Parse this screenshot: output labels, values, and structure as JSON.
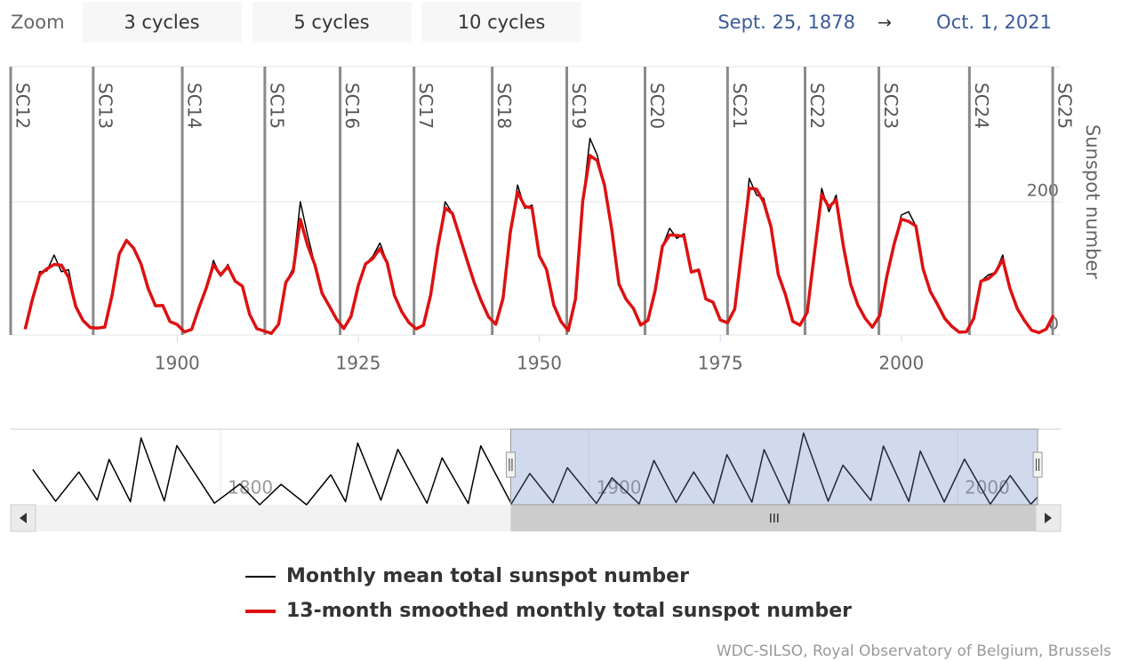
{
  "zoom_label": "Zoom",
  "zoom_buttons": [
    "3 cycles",
    "5 cycles",
    "10 cycles"
  ],
  "range": {
    "from": "Sept. 25, 1878",
    "arrow": "→",
    "to": "Oct. 1, 2021"
  },
  "credits": "WDC-SILSO, Royal Observatory of Belgium, Brussels",
  "chart_data": [
    {
      "type": "line",
      "y_axis_label": "Sunspot number",
      "xlim": [
        1877,
        2022
      ],
      "ylim": [
        0,
        400
      ],
      "xticks": [
        1900,
        1925,
        1950,
        1975,
        2000
      ],
      "yticks": [
        0,
        200
      ],
      "grid": true,
      "cycles": [
        {
          "name": "SC12",
          "x": 1877.0
        },
        {
          "name": "SC13",
          "x": 1888.4
        },
        {
          "name": "SC14",
          "x": 1900.7
        },
        {
          "name": "SC15",
          "x": 1912.1
        },
        {
          "name": "SC16",
          "x": 1922.5
        },
        {
          "name": "SC17",
          "x": 1932.7
        },
        {
          "name": "SC18",
          "x": 1943.5
        },
        {
          "name": "SC19",
          "x": 1953.8
        },
        {
          "name": "SC20",
          "x": 1964.6
        },
        {
          "name": "SC21",
          "x": 1976.0
        },
        {
          "name": "SC22",
          "x": 1986.7
        },
        {
          "name": "SC23",
          "x": 1996.9
        },
        {
          "name": "SC24",
          "x": 2009.4
        },
        {
          "name": "SC25",
          "x": 2020.9
        }
      ],
      "x": [
        1879,
        1880,
        1881,
        1882,
        1883,
        1884,
        1885,
        1886,
        1887,
        1888,
        1889,
        1890,
        1891,
        1892,
        1893,
        1894,
        1895,
        1896,
        1897,
        1898,
        1899,
        1900,
        1901,
        1902,
        1903,
        1904,
        1905,
        1906,
        1907,
        1908,
        1909,
        1910,
        1911,
        1912,
        1913,
        1914,
        1915,
        1916,
        1917,
        1918,
        1919,
        1920,
        1921,
        1922,
        1923,
        1924,
        1925,
        1926,
        1927,
        1928,
        1929,
        1930,
        1931,
        1932,
        1933,
        1934,
        1935,
        1936,
        1937,
        1938,
        1939,
        1940,
        1941,
        1942,
        1943,
        1944,
        1945,
        1946,
        1947,
        1948,
        1949,
        1950,
        1951,
        1952,
        1953,
        1954,
        1955,
        1956,
        1957,
        1958,
        1959,
        1960,
        1961,
        1962,
        1963,
        1964,
        1965,
        1966,
        1967,
        1968,
        1969,
        1970,
        1971,
        1972,
        1973,
        1974,
        1975,
        1976,
        1977,
        1978,
        1979,
        1980,
        1981,
        1982,
        1983,
        1984,
        1985,
        1986,
        1987,
        1988,
        1989,
        1990,
        1991,
        1992,
        1993,
        1994,
        1995,
        1996,
        1997,
        1998,
        1999,
        2000,
        2001,
        2002,
        2003,
        2004,
        2005,
        2006,
        2007,
        2008,
        2009,
        2010,
        2011,
        2012,
        2013,
        2014,
        2015,
        2016,
        2017,
        2018,
        2019,
        2020,
        2021
      ],
      "series": [
        {
          "name": "Monthly mean total sunspot number",
          "color": "#000000",
          "width": 1.5,
          "values": [
            8.7,
            53.4,
            95,
            96,
            120,
            95,
            98,
            42.4,
            21.6,
            11.2,
            10.4,
            11.8,
            59.5,
            121.7,
            142.0,
            130.0,
            106.6,
            69.4,
            43.8,
            44.4,
            20.2,
            15.7,
            4.6,
            8.5,
            40.8,
            70.1,
            112,
            88,
            106,
            80.9,
            73.2,
            30.9,
            9.5,
            6.0,
            2.4,
            16.1,
            79.0,
            100,
            200,
            150,
            105.7,
            62.7,
            43.5,
            23.7,
            9.7,
            27.9,
            74.0,
            106.5,
            118,
            138,
            108.2,
            59.4,
            35.1,
            18.6,
            9.2,
            14.6,
            60.2,
            132.8,
            200,
            182.6,
            148.0,
            113.0,
            79.2,
            50.8,
            27.1,
            16.1,
            55.3,
            154.3,
            225,
            190,
            195,
            118.9,
            98.3,
            45.0,
            20.1,
            6.6,
            54.2,
            200.7,
            295,
            270,
            225.1,
            159.0,
            76.4,
            53.4,
            39.9,
            15.0,
            22.0,
            66.8,
            132.9,
            160,
            145,
            152,
            94.4,
            97.6,
            54.1,
            49.2,
            22.5,
            18.4,
            39.3,
            131.0,
            235,
            210,
            205,
            162.4,
            91.0,
            60.5,
            20.6,
            14.8,
            33.9,
            123.0,
            220,
            185,
            210,
            133.0,
            76.1,
            44.9,
            25.1,
            11.6,
            28.9,
            88.3,
            136.3,
            180,
            185,
            163.6,
            99.3,
            65.3,
            45.8,
            24.7,
            12.6,
            4.2,
            4.8,
            24.9,
            80.8,
            90,
            94.0,
            120,
            69.8,
            39.8,
            21.7,
            7.0,
            3.6,
            8.8,
            29.6
          ]
        },
        {
          "name": "13-month smoothed monthly total sunspot number",
          "color": "#dd1111",
          "width": 3.5,
          "values": [
            8.7,
            53.4,
            90.6,
            99.2,
            105.9,
            104.9,
            86.3,
            42.4,
            21.6,
            11.2,
            10.4,
            11.8,
            59.5,
            121.7,
            142.0,
            130.0,
            106.6,
            69.4,
            43.8,
            44.4,
            20.2,
            15.7,
            4.6,
            8.5,
            40.8,
            70.1,
            105.5,
            90.1,
            102.8,
            80.9,
            73.2,
            30.9,
            9.5,
            6.0,
            2.4,
            16.1,
            79.0,
            95.0,
            173.6,
            134.6,
            105.7,
            62.7,
            43.5,
            23.7,
            9.7,
            27.9,
            74.0,
            106.5,
            114.7,
            129.7,
            108.2,
            59.4,
            35.1,
            18.6,
            9.2,
            14.6,
            60.2,
            132.8,
            190.6,
            182.6,
            148.0,
            113.0,
            79.2,
            50.8,
            27.1,
            16.1,
            55.3,
            154.3,
            214.7,
            193.0,
            190.7,
            118.9,
            98.3,
            45.0,
            20.1,
            6.6,
            54.2,
            200.7,
            269.3,
            261.7,
            225.1,
            159.0,
            76.4,
            53.4,
            39.9,
            15.0,
            22.0,
            66.8,
            132.9,
            150.2,
            149.4,
            148.0,
            94.4,
            97.6,
            54.1,
            49.2,
            22.5,
            18.4,
            39.3,
            131.0,
            220.1,
            218.9,
            198.9,
            162.4,
            91.0,
            60.5,
            20.6,
            14.8,
            33.9,
            123.0,
            211.1,
            191.8,
            203.3,
            133.0,
            76.1,
            44.9,
            25.1,
            11.6,
            28.9,
            88.3,
            136.3,
            173.9,
            170.4,
            163.6,
            99.3,
            65.3,
            45.8,
            24.7,
            12.6,
            4.2,
            4.8,
            24.9,
            80.8,
            84.5,
            94.0,
            113.3,
            69.8,
            39.8,
            21.7,
            7.0,
            3.6,
            8.8,
            29.6
          ]
        }
      ]
    },
    {
      "type": "line",
      "xlim": [
        1743,
        2028
      ],
      "ylim": [
        0,
        300
      ],
      "xticks": [
        1800,
        1900,
        2000
      ],
      "selected_range": [
        1878.73,
        2021.75
      ],
      "x": [
        1749,
        1755.2,
        1761.5,
        1766.5,
        1769.7,
        1775.5,
        1778.4,
        1784.7,
        1788.1,
        1798.3,
        1805.2,
        1810.6,
        1816.4,
        1823.3,
        1829.9,
        1833.9,
        1837.2,
        1843.5,
        1848.1,
        1856,
        1860.1,
        1867.2,
        1870.6,
        1878.9,
        1883.9,
        1890.2,
        1894.1,
        1902,
        1906.2,
        1913.6,
        1917.6,
        1923.6,
        1928.4,
        1933.8,
        1937.4,
        1944.2,
        1947.5,
        1954.3,
        1958.2,
        1964.9,
        1968.9,
        1976.5,
        1979.9,
        1986.8,
        1989.9,
        1996.4,
        2001.9,
        2008.9,
        2014.3,
        2019.9,
        2021.7
      ],
      "series": [
        {
          "color": "#000000",
          "values": [
            140,
            14,
            130,
            18,
            180,
            12,
            265,
            15,
            235,
            6,
            82,
            0,
            81,
            0,
            119,
            12,
            245,
            18,
            220,
            6,
            186,
            5,
            234,
            4,
            124,
            8,
            147,
            5,
            107,
            3,
            176,
            9,
            130,
            6,
            199,
            10,
            219,
            5,
            285,
            14,
            157,
            17,
            233,
            13,
            213,
            11,
            181,
            2,
            116,
            2,
            30
          ]
        }
      ]
    }
  ]
}
